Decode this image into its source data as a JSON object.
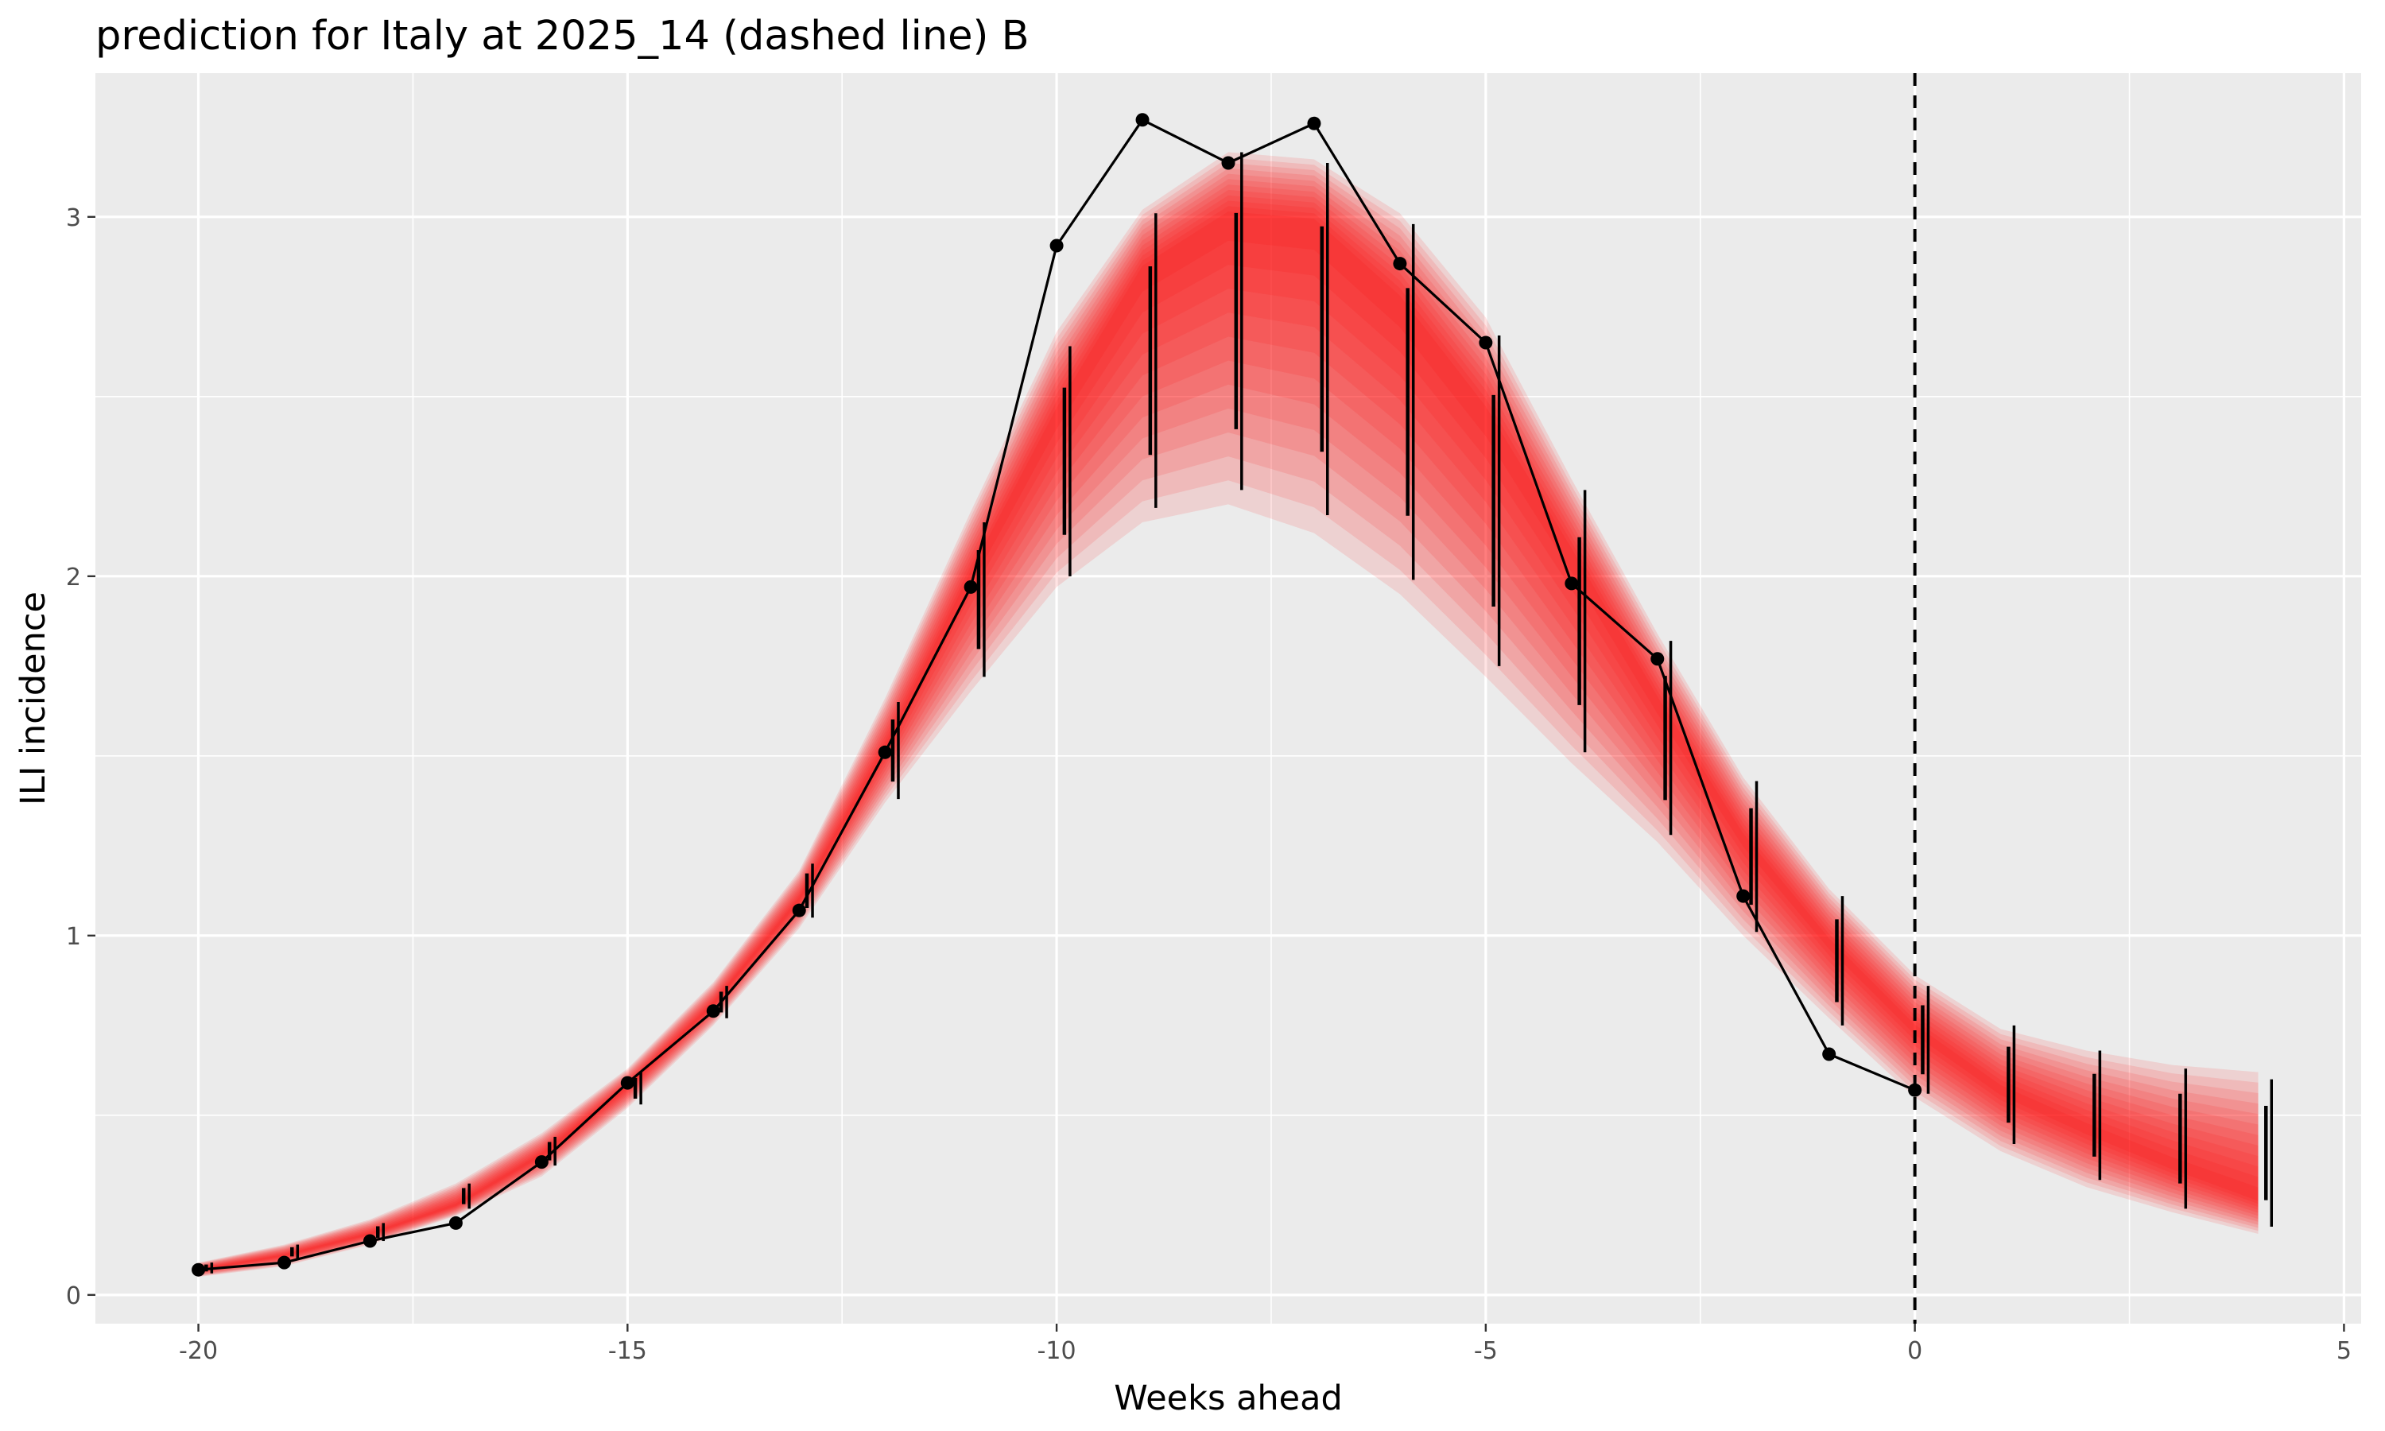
{
  "chart_data": {
    "type": "line",
    "title": "prediction for Italy at 2025_14 (dashed line) B",
    "xlabel": "Weeks ahead",
    "ylabel": "ILI incidence",
    "xlim": [
      -21.2,
      5.2
    ],
    "ylim": [
      -0.08,
      3.4
    ],
    "x_ticks": [
      -20,
      -15,
      -10,
      -5,
      0,
      5
    ],
    "x_tick_labels": [
      "-20",
      "-15",
      "-10",
      "-5",
      "0",
      "5"
    ],
    "y_ticks": [
      0,
      1,
      2,
      3
    ],
    "y_tick_labels": [
      "0",
      "1",
      "2",
      "3"
    ],
    "grid": true,
    "reference_line": {
      "x": 0,
      "style": "dashed",
      "color": "#000000"
    },
    "colors": {
      "panel_background": "#ebebeb",
      "grid": "#ffffff",
      "band": "#ff0000",
      "observed": "#000000",
      "interval": "#000000"
    },
    "observed": {
      "x": [
        -20,
        -19,
        -18,
        -17,
        -16,
        -15,
        -14,
        -13,
        -12,
        -11,
        -10,
        -9,
        -8,
        -7,
        -6,
        -5,
        -4,
        -3,
        -2,
        -1,
        0
      ],
      "y": [
        0.07,
        0.09,
        0.15,
        0.2,
        0.37,
        0.59,
        0.79,
        1.07,
        1.51,
        1.97,
        2.92,
        3.27,
        3.15,
        3.26,
        2.87,
        2.65,
        1.98,
        1.77,
        1.11,
        0.67,
        0.57
      ]
    },
    "forecast_band": {
      "x": [
        -20,
        -19,
        -18,
        -17,
        -16,
        -15,
        -14,
        -13,
        -12,
        -11,
        -10,
        -9,
        -8,
        -7,
        -6,
        -5,
        -4,
        -3,
        -2,
        -1,
        0,
        1,
        2,
        3,
        4
      ],
      "median": [
        0.07,
        0.11,
        0.17,
        0.25,
        0.39,
        0.58,
        0.81,
        1.1,
        1.52,
        2.0,
        2.45,
        2.85,
        3.0,
        2.98,
        2.76,
        2.45,
        2.06,
        1.65,
        1.27,
        0.98,
        0.74,
        0.57,
        0.46,
        0.36,
        0.27
      ],
      "lower": [
        0.05,
        0.08,
        0.14,
        0.22,
        0.33,
        0.52,
        0.75,
        1.02,
        1.37,
        1.68,
        1.97,
        2.15,
        2.2,
        2.12,
        1.95,
        1.72,
        1.48,
        1.26,
        1.0,
        0.77,
        0.55,
        0.4,
        0.3,
        0.23,
        0.17
      ],
      "upper": [
        0.09,
        0.14,
        0.21,
        0.31,
        0.45,
        0.63,
        0.87,
        1.18,
        1.66,
        2.18,
        2.68,
        3.02,
        3.18,
        3.16,
        3.01,
        2.72,
        2.27,
        1.84,
        1.44,
        1.13,
        0.89,
        0.74,
        0.68,
        0.64,
        0.62
      ]
    },
    "intervals": [
      {
        "x": -19.9,
        "lo": 0.06,
        "hi": 0.09
      },
      {
        "x": -18.9,
        "lo": 0.1,
        "hi": 0.14
      },
      {
        "x": -17.9,
        "lo": 0.15,
        "hi": 0.2
      },
      {
        "x": -16.9,
        "lo": 0.24,
        "hi": 0.31
      },
      {
        "x": -15.9,
        "lo": 0.36,
        "hi": 0.44
      },
      {
        "x": -14.9,
        "lo": 0.53,
        "hi": 0.62
      },
      {
        "x": -13.9,
        "lo": 0.77,
        "hi": 0.86
      },
      {
        "x": -12.9,
        "lo": 1.05,
        "hi": 1.2
      },
      {
        "x": -11.9,
        "lo": 1.38,
        "hi": 1.65
      },
      {
        "x": -10.9,
        "lo": 1.72,
        "hi": 2.15
      },
      {
        "x": -9.9,
        "lo": 2.0,
        "hi": 2.64
      },
      {
        "x": -8.9,
        "lo": 2.19,
        "hi": 3.01
      },
      {
        "x": -7.9,
        "lo": 2.24,
        "hi": 3.18
      },
      {
        "x": -6.9,
        "lo": 2.17,
        "hi": 3.15
      },
      {
        "x": -5.9,
        "lo": 1.99,
        "hi": 2.98
      },
      {
        "x": -4.9,
        "lo": 1.75,
        "hi": 2.67
      },
      {
        "x": -3.9,
        "lo": 1.51,
        "hi": 2.24
      },
      {
        "x": -2.9,
        "lo": 1.28,
        "hi": 1.82
      },
      {
        "x": -1.9,
        "lo": 1.01,
        "hi": 1.43
      },
      {
        "x": -0.9,
        "lo": 0.75,
        "hi": 1.11
      },
      {
        "x": 0.1,
        "lo": 0.56,
        "hi": 0.86
      },
      {
        "x": 1.1,
        "lo": 0.42,
        "hi": 0.75
      },
      {
        "x": 2.1,
        "lo": 0.32,
        "hi": 0.68
      },
      {
        "x": 3.1,
        "lo": 0.24,
        "hi": 0.63
      },
      {
        "x": 4.1,
        "lo": 0.19,
        "hi": 0.6
      }
    ]
  }
}
